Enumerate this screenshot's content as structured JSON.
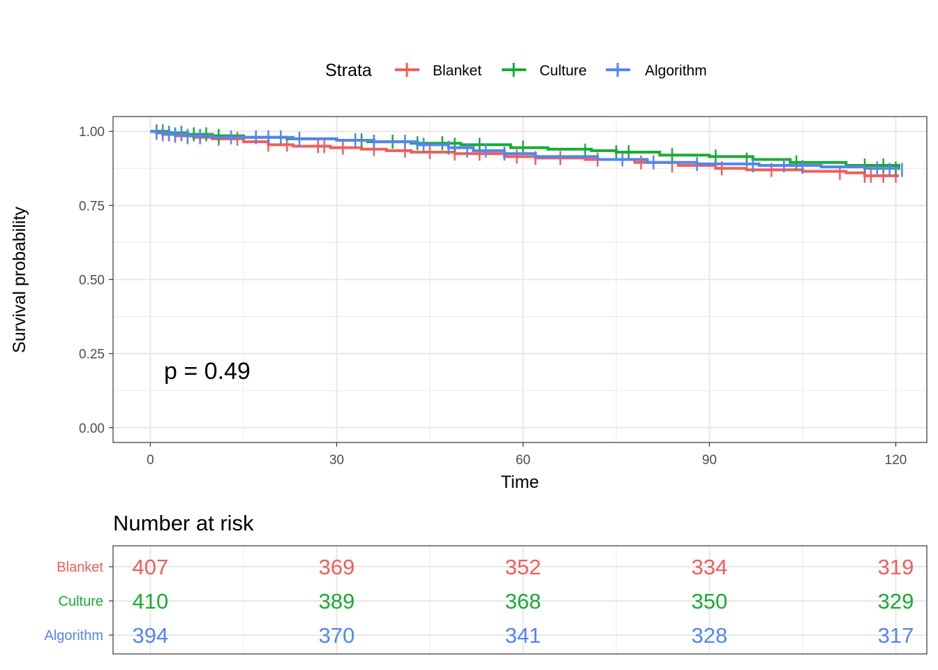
{
  "colors": {
    "Blanket": "#f15e5a",
    "Culture": "#1aaa34",
    "Algorithm": "#5485ee",
    "axis_text": "#4d4d4d",
    "grid": "#e8e8e8",
    "frame": "#333333"
  },
  "legend": {
    "title": "Strata",
    "items": [
      "Blanket",
      "Culture",
      "Algorithm"
    ]
  },
  "chart_data": [
    {
      "type": "line",
      "subtype": "kaplan-meier step curve",
      "xlabel": "Time",
      "ylabel": "Survival probability",
      "xlim": [
        -6,
        125
      ],
      "ylim": [
        -0.05,
        1.05
      ],
      "xticks": [
        "0",
        "30",
        "60",
        "90",
        "120"
      ],
      "yticks": [
        "0.00",
        "0.25",
        "0.50",
        "0.75",
        "1.00"
      ],
      "grid": true,
      "legend_position": "top",
      "annotation": "p = 0.49",
      "series": [
        {
          "name": "Blanket",
          "x": [
            0,
            2,
            4,
            7,
            10,
            15,
            19,
            23,
            29,
            34,
            38,
            42,
            49,
            57,
            62,
            70,
            78,
            85,
            91,
            96,
            105,
            112,
            115,
            120.5
          ],
          "y": [
            1.0,
            0.99,
            0.985,
            0.98,
            0.975,
            0.965,
            0.955,
            0.95,
            0.945,
            0.94,
            0.935,
            0.93,
            0.925,
            0.915,
            0.91,
            0.905,
            0.895,
            0.885,
            0.875,
            0.87,
            0.865,
            0.86,
            0.85,
            0.85
          ],
          "censor_x": [
            2,
            4,
            6,
            8,
            11,
            14,
            19,
            22,
            27,
            28,
            31,
            36,
            41,
            45,
            49,
            53,
            59,
            62,
            66,
            72,
            79,
            84,
            92,
            100,
            111,
            115,
            116,
            118,
            120
          ],
          "censor_y": [
            0.99,
            0.985,
            0.98,
            0.98,
            0.975,
            0.975,
            0.955,
            0.955,
            0.95,
            0.95,
            0.945,
            0.94,
            0.935,
            0.93,
            0.925,
            0.925,
            0.915,
            0.91,
            0.91,
            0.905,
            0.895,
            0.885,
            0.875,
            0.87,
            0.86,
            0.85,
            0.85,
            0.85,
            0.85
          ]
        },
        {
          "name": "Culture",
          "x": [
            0,
            3,
            6,
            10,
            15,
            22,
            30,
            35,
            42,
            50,
            58,
            64,
            71,
            75,
            82,
            90,
            97,
            103,
            112,
            120.5
          ],
          "y": [
            1.0,
            0.995,
            0.99,
            0.985,
            0.98,
            0.975,
            0.97,
            0.965,
            0.96,
            0.955,
            0.945,
            0.94,
            0.935,
            0.93,
            0.92,
            0.915,
            0.905,
            0.895,
            0.885,
            0.875
          ],
          "censor_x": [
            1,
            2,
            3,
            5,
            7,
            9,
            11,
            34,
            36,
            39,
            43,
            47,
            49,
            53,
            60,
            70,
            75,
            77,
            84,
            91,
            96,
            104,
            115,
            118,
            120
          ],
          "censor_y": [
            1.0,
            1.0,
            0.995,
            0.995,
            0.99,
            0.99,
            0.985,
            0.97,
            0.965,
            0.965,
            0.96,
            0.96,
            0.955,
            0.955,
            0.945,
            0.935,
            0.93,
            0.93,
            0.92,
            0.915,
            0.905,
            0.895,
            0.885,
            0.885,
            0.875
          ]
        },
        {
          "name": "Algorithm",
          "x": [
            0,
            1,
            3,
            6,
            10,
            15,
            23,
            30,
            36,
            43,
            48,
            52,
            57,
            62,
            72,
            80,
            88,
            98,
            108,
            115,
            120.5
          ],
          "y": [
            1.0,
            0.995,
            0.99,
            0.985,
            0.98,
            0.98,
            0.975,
            0.97,
            0.965,
            0.955,
            0.945,
            0.935,
            0.925,
            0.915,
            0.905,
            0.895,
            0.89,
            0.885,
            0.88,
            0.875,
            0.87
          ],
          "censor_x": [
            1,
            2,
            3,
            4,
            5,
            6,
            8,
            13,
            17,
            19,
            21,
            24,
            33,
            36,
            41,
            44,
            48,
            51,
            54,
            57,
            76,
            81,
            88,
            97,
            102,
            105,
            117,
            119,
            121
          ],
          "censor_y": [
            0.995,
            0.995,
            0.99,
            0.99,
            0.99,
            0.985,
            0.985,
            0.98,
            0.98,
            0.98,
            0.98,
            0.975,
            0.97,
            0.965,
            0.965,
            0.955,
            0.945,
            0.935,
            0.935,
            0.925,
            0.905,
            0.895,
            0.89,
            0.885,
            0.885,
            0.88,
            0.875,
            0.87,
            0.87
          ]
        }
      ]
    },
    {
      "type": "table",
      "title": "Number at risk",
      "x": [
        0,
        30,
        60,
        90,
        120
      ],
      "rows": [
        {
          "name": "Blanket",
          "values": [
            "407",
            "369",
            "352",
            "334",
            "319"
          ]
        },
        {
          "name": "Culture",
          "values": [
            "410",
            "389",
            "368",
            "350",
            "329"
          ]
        },
        {
          "name": "Algorithm",
          "values": [
            "394",
            "370",
            "341",
            "328",
            "317"
          ]
        }
      ]
    }
  ]
}
